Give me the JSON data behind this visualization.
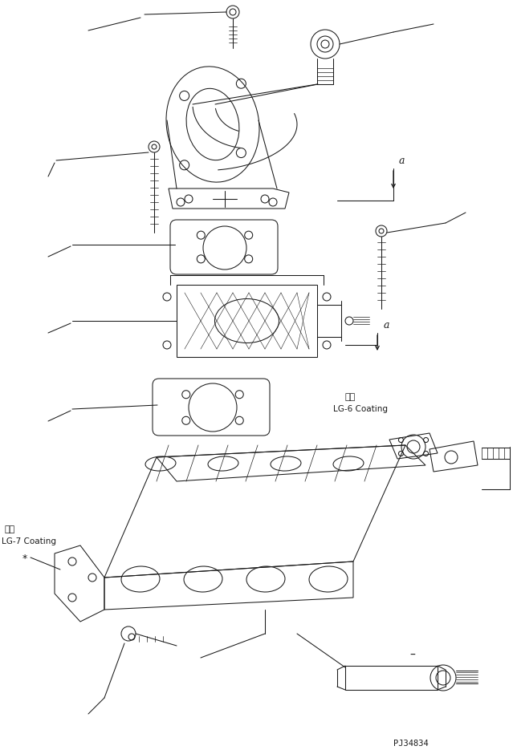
{
  "bg_color": "#ffffff",
  "line_color": "#1a1a1a",
  "fig_width": 6.39,
  "fig_height": 9.4,
  "dpi": 100,
  "lg6_text1": "塗布",
  "lg6_text2": "LG-6 Coating",
  "lg7_text1": "塗布",
  "lg7_text2": "LG-7 Coating",
  "part_number": "PJ34834"
}
